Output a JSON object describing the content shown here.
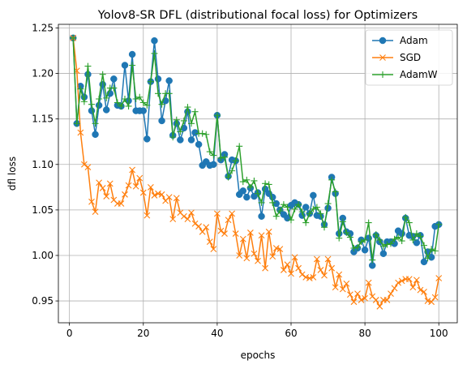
{
  "chart_data": {
    "type": "line",
    "title": "Yolov8-SR DFL (distributional focal loss) for Optimizers",
    "xlabel": "epochs",
    "ylabel": "dfl loss",
    "xlim": [
      -3,
      105
    ],
    "ylim": [
      0.926,
      1.254
    ],
    "xticks": [
      0,
      20,
      40,
      60,
      80,
      100
    ],
    "yticks": [
      0.95,
      1.0,
      1.05,
      1.1,
      1.15,
      1.2,
      1.25
    ],
    "ytick_labels": [
      "0.95",
      "1.00",
      "1.05",
      "1.10",
      "1.15",
      "1.20",
      "1.25"
    ],
    "grid": true,
    "legend_position": "top-right",
    "x": [
      1,
      2,
      3,
      4,
      5,
      6,
      7,
      8,
      9,
      10,
      11,
      12,
      13,
      14,
      15,
      16,
      17,
      18,
      19,
      20,
      21,
      22,
      23,
      24,
      25,
      26,
      27,
      28,
      29,
      30,
      31,
      32,
      33,
      34,
      35,
      36,
      37,
      38,
      39,
      40,
      41,
      42,
      43,
      44,
      45,
      46,
      47,
      48,
      49,
      50,
      51,
      52,
      53,
      54,
      55,
      56,
      57,
      58,
      59,
      60,
      61,
      62,
      63,
      64,
      65,
      66,
      67,
      68,
      69,
      70,
      71,
      72,
      73,
      74,
      75,
      76,
      77,
      78,
      79,
      80,
      81,
      82,
      83,
      84,
      85,
      86,
      87,
      88,
      89,
      90,
      91,
      92,
      93,
      94,
      95,
      96,
      97,
      98,
      99,
      100
    ],
    "series": [
      {
        "name": "Adam",
        "color": "#1f77b4",
        "marker": "circle",
        "values": [
          1.239,
          1.145,
          1.186,
          1.174,
          1.199,
          1.159,
          1.133,
          1.165,
          1.188,
          1.16,
          1.178,
          1.194,
          1.165,
          1.164,
          1.209,
          1.17,
          1.221,
          1.159,
          1.159,
          1.159,
          1.128,
          1.191,
          1.236,
          1.194,
          1.148,
          1.17,
          1.192,
          1.132,
          1.145,
          1.127,
          1.14,
          1.158,
          1.127,
          1.135,
          1.122,
          1.099,
          1.103,
          1.099,
          1.1,
          1.154,
          1.105,
          1.111,
          1.087,
          1.105,
          1.104,
          1.067,
          1.071,
          1.064,
          1.074,
          1.065,
          1.069,
          1.043,
          1.073,
          1.068,
          1.064,
          1.057,
          1.05,
          1.045,
          1.041,
          1.055,
          1.058,
          1.056,
          1.044,
          1.053,
          1.046,
          1.066,
          1.044,
          1.043,
          1.034,
          1.052,
          1.086,
          1.068,
          1.024,
          1.041,
          1.026,
          1.024,
          1.004,
          1.008,
          1.017,
          1.006,
          1.019,
          0.989,
          1.022,
          1.015,
          1.002,
          1.015,
          1.015,
          1.013,
          1.027,
          1.024,
          1.041,
          1.022,
          1.021,
          1.014,
          1.022,
          0.993,
          1.004,
          0.998,
          1.032,
          1.034
        ]
      },
      {
        "name": "SGD",
        "color": "#ff7f0e",
        "marker": "x",
        "values": [
          1.239,
          1.203,
          1.135,
          1.1,
          1.097,
          1.059,
          1.048,
          1.08,
          1.074,
          1.065,
          1.079,
          1.061,
          1.057,
          1.057,
          1.067,
          1.077,
          1.094,
          1.076,
          1.085,
          1.069,
          1.044,
          1.075,
          1.066,
          1.068,
          1.067,
          1.06,
          1.064,
          1.04,
          1.063,
          1.047,
          1.043,
          1.04,
          1.047,
          1.035,
          1.032,
          1.026,
          1.031,
          1.015,
          1.007,
          1.046,
          1.027,
          1.024,
          1.039,
          1.046,
          1.024,
          1.0,
          1.018,
          0.997,
          1.025,
          1.002,
          0.994,
          1.022,
          0.986,
          1.026,
          0.999,
          1.008,
          1.007,
          0.984,
          0.99,
          0.98,
          0.998,
          0.986,
          0.979,
          0.976,
          0.975,
          0.976,
          0.996,
          0.984,
          0.978,
          0.996,
          0.986,
          0.965,
          0.979,
          0.963,
          0.969,
          0.957,
          0.949,
          0.958,
          0.951,
          0.953,
          0.97,
          0.955,
          0.951,
          0.944,
          0.951,
          0.951,
          0.958,
          0.964,
          0.97,
          0.972,
          0.974,
          0.974,
          0.965,
          0.973,
          0.962,
          0.96,
          0.95,
          0.949,
          0.954,
          0.975
        ]
      },
      {
        "name": "AdamW",
        "color": "#2ca02c",
        "marker": "plus",
        "values": [
          1.239,
          1.145,
          1.183,
          1.169,
          1.208,
          1.166,
          1.145,
          1.172,
          1.199,
          1.173,
          1.184,
          1.184,
          1.168,
          1.164,
          1.172,
          1.164,
          1.209,
          1.172,
          1.174,
          1.168,
          1.165,
          1.191,
          1.222,
          1.178,
          1.166,
          1.178,
          1.178,
          1.13,
          1.149,
          1.136,
          1.148,
          1.163,
          1.145,
          1.158,
          1.134,
          1.134,
          1.133,
          1.114,
          1.11,
          1.154,
          1.107,
          1.108,
          1.086,
          1.093,
          1.104,
          1.12,
          1.081,
          1.083,
          1.075,
          1.082,
          1.068,
          1.058,
          1.079,
          1.078,
          1.058,
          1.043,
          1.049,
          1.056,
          1.053,
          1.039,
          1.051,
          1.056,
          1.048,
          1.036,
          1.046,
          1.051,
          1.053,
          1.046,
          1.031,
          1.057,
          1.083,
          1.07,
          1.019,
          1.037,
          1.025,
          1.02,
          1.008,
          1.009,
          1.015,
          1.017,
          1.036,
          0.995,
          1.023,
          1.017,
          1.01,
          1.012,
          1.013,
          1.018,
          1.02,
          1.016,
          1.042,
          1.036,
          1.017,
          1.024,
          1.021,
          1.011,
          0.997,
          1.007,
          1.005,
          1.034
        ]
      }
    ]
  }
}
